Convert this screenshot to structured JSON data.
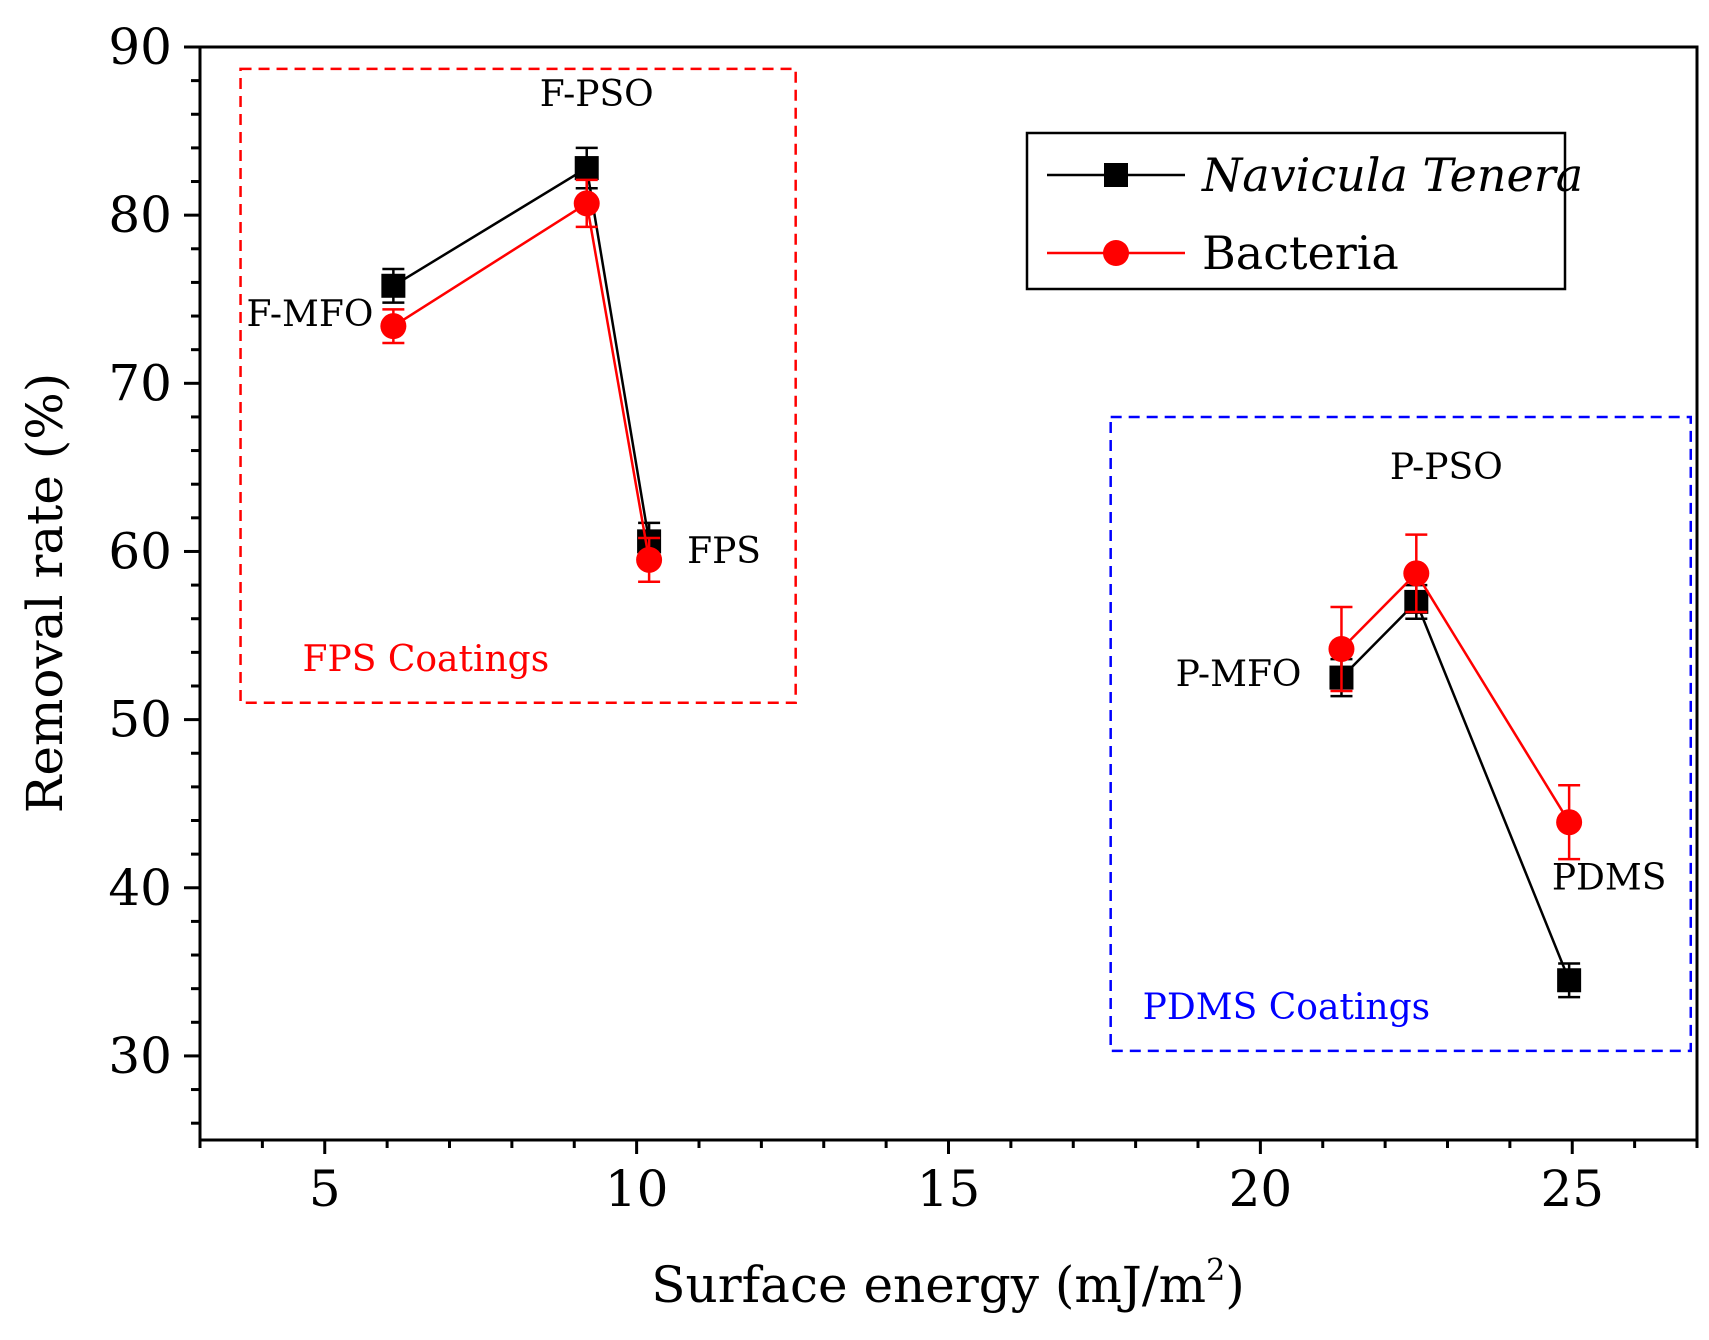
{
  "chart_data": {
    "type": "line",
    "xlabel_main": "Surface energy (mJ/m",
    "xlabel_sup": "2",
    "xlabel_end": ")",
    "ylabel": "Removal rate (%)",
    "xlim": [
      3,
      27
    ],
    "ylim": [
      25,
      90
    ],
    "x_ticks": [
      5,
      10,
      15,
      20,
      25
    ],
    "x_tick_labels": [
      "5",
      "10",
      "15",
      "20",
      "25"
    ],
    "y_ticks": [
      30,
      40,
      50,
      60,
      70,
      80,
      90
    ],
    "y_tick_labels": [
      "30",
      "40",
      "50",
      "60",
      "70",
      "80",
      "90"
    ],
    "series": [
      {
        "name": "Navicula Tenera",
        "color": "#000000",
        "marker": "square",
        "italic": true,
        "points": [
          {
            "x": 6.1,
            "y": 75.8,
            "err": 1.0
          },
          {
            "x": 9.2,
            "y": 82.8,
            "err": 1.2
          },
          {
            "x": 10.2,
            "y": 60.6,
            "err": 1.1
          },
          {
            "x": 21.3,
            "y": 52.5,
            "err": 1.1
          },
          {
            "x": 22.5,
            "y": 57.0,
            "err": 1.0
          },
          {
            "x": 24.95,
            "y": 34.5,
            "err": 1.0
          }
        ]
      },
      {
        "name": "Bacteria",
        "color": "#ff0000",
        "marker": "circle",
        "italic": false,
        "points": [
          {
            "x": 6.1,
            "y": 73.4,
            "err": 1.0
          },
          {
            "x": 9.2,
            "y": 80.7,
            "err": 1.4
          },
          {
            "x": 10.2,
            "y": 59.5,
            "err": 1.3
          },
          {
            "x": 21.3,
            "y": 54.2,
            "err": 2.5
          },
          {
            "x": 22.5,
            "y": 58.7,
            "err": 2.3
          },
          {
            "x": 24.95,
            "y": 43.9,
            "err": 2.2
          }
        ]
      }
    ],
    "point_labels": [
      "F-MFO",
      "F-PSO",
      "FPS",
      "P-MFO",
      "P-PSO",
      "PDMS"
    ],
    "groups": [
      {
        "label": "FPS Coatings",
        "color": "#ff0000",
        "x_range": [
          3.65,
          12.55
        ],
        "y_range": [
          51.0,
          88.7
        ]
      },
      {
        "label": "PDMS Coatings",
        "color": "#0000ff",
        "x_range": [
          17.6,
          26.9
        ],
        "y_range": [
          30.3,
          68.0
        ]
      }
    ],
    "legend_position": "top-right"
  }
}
